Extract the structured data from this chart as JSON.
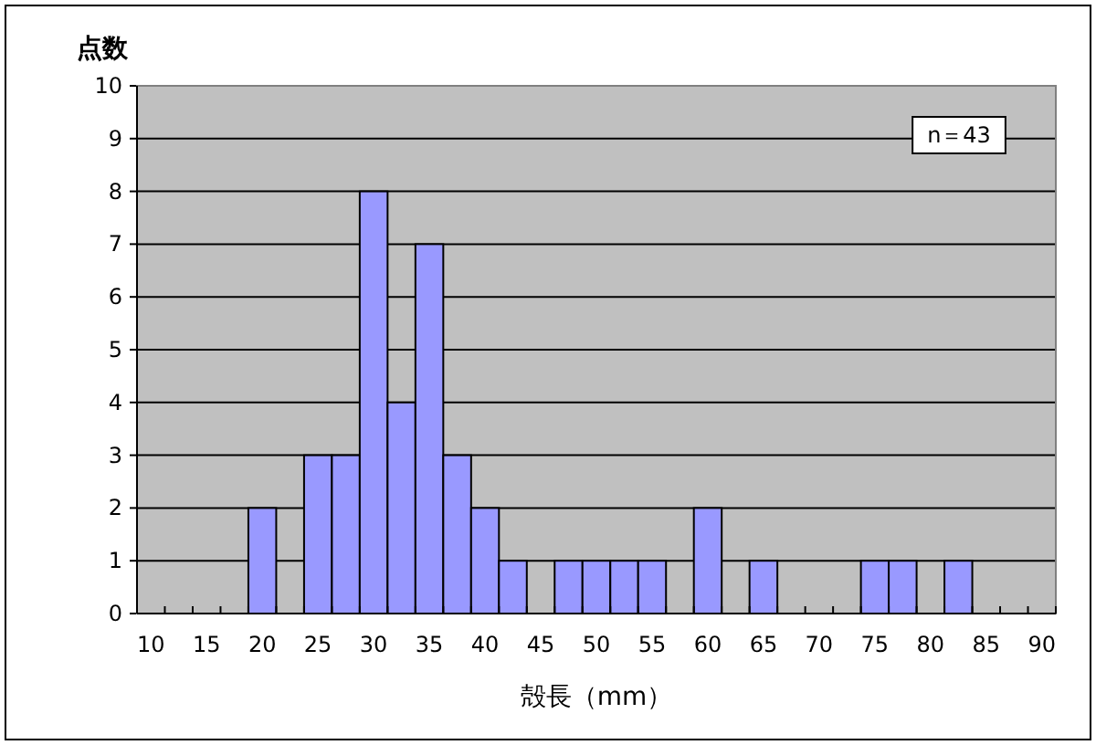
{
  "chart_data": {
    "type": "bar",
    "ylabel": "点数",
    "xlabel": "殻長（mm）",
    "categories": [
      "10",
      null,
      "15",
      null,
      "20",
      null,
      "25",
      null,
      "30",
      null,
      "35",
      null,
      "40",
      null,
      "45",
      null,
      "50",
      null,
      "55",
      null,
      "60",
      null,
      "65",
      null,
      "70",
      null,
      "75",
      null,
      "80",
      null,
      "85",
      null,
      "90"
    ],
    "values": [
      0,
      0,
      0,
      0,
      2,
      0,
      3,
      3,
      8,
      4,
      7,
      3,
      2,
      1,
      0,
      1,
      1,
      1,
      1,
      0,
      2,
      0,
      1,
      0,
      0,
      0,
      1,
      1,
      0,
      1,
      0,
      0,
      0
    ],
    "color": "#9999ff",
    "ylim": [
      0,
      10
    ],
    "yticks": [
      0,
      1,
      2,
      3,
      4,
      5,
      6,
      7,
      8,
      9,
      10
    ],
    "grid": "y",
    "annotations": [
      "n＝43"
    ]
  }
}
